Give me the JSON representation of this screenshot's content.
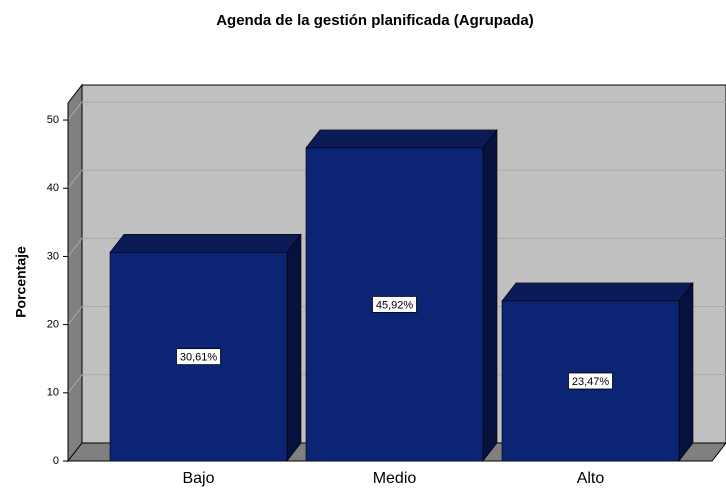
{
  "chart_data": {
    "type": "bar3d",
    "title": "Agenda de la gestión planificada (Agrupada)",
    "y_label": "Porcentaje",
    "categories": [
      "Bajo",
      "Medio",
      "Alto"
    ],
    "values": [
      30.61,
      45.92,
      23.47
    ],
    "value_labels": [
      "30,61%",
      "45,92%",
      "23,47%"
    ],
    "color": "#0b2473",
    "ylim": [
      0,
      52.5
    ],
    "yticks": [
      0,
      10,
      20,
      30,
      40,
      50
    ],
    "grid": true
  }
}
